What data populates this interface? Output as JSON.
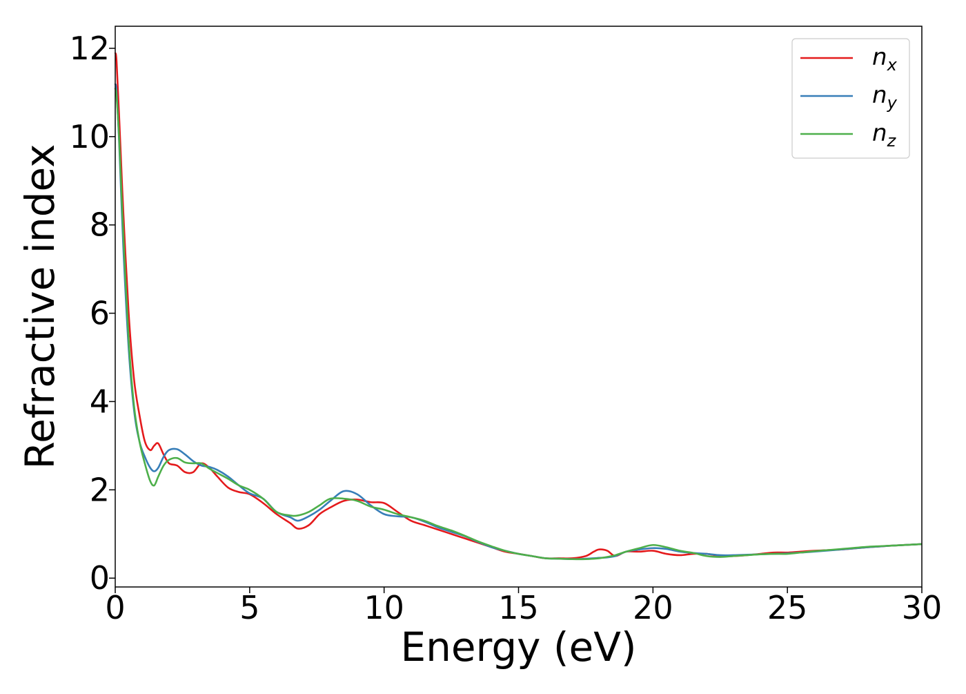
{
  "chart_data": {
    "type": "line",
    "title": "",
    "xlabel": "Energy (eV)",
    "ylabel": "Refractive index",
    "xlim": [
      0,
      30
    ],
    "ylim": [
      -0.2,
      12.5
    ],
    "xticks": [
      0,
      5,
      10,
      15,
      20,
      25,
      30
    ],
    "yticks": [
      0,
      2,
      4,
      6,
      8,
      10,
      12
    ],
    "grid": false,
    "legend_position": "top-right",
    "series": [
      {
        "name": "n_x",
        "label_main": "n",
        "label_sub": "x",
        "color": "#e41a1c",
        "x": [
          0,
          0.05,
          0.15,
          0.3,
          0.5,
          0.7,
          0.9,
          1.1,
          1.3,
          1.45,
          1.6,
          1.8,
          2.0,
          2.3,
          2.6,
          2.9,
          3.2,
          3.5,
          3.8,
          4.2,
          4.6,
          5.0,
          5.5,
          6.0,
          6.5,
          6.8,
          7.2,
          7.6,
          8.0,
          8.5,
          9.0,
          9.5,
          10.0,
          10.5,
          11.0,
          11.5,
          12.0,
          12.5,
          13.0,
          13.5,
          14.0,
          14.5,
          15.0,
          15.5,
          16.0,
          16.5,
          17.0,
          17.5,
          17.8,
          18.0,
          18.3,
          18.6,
          19.0,
          19.5,
          20.0,
          20.5,
          21.0,
          21.5,
          22.0,
          22.5,
          23.0,
          23.5,
          24.0,
          24.5,
          25.0,
          25.5,
          26.0,
          27.0,
          28.0,
          29.0,
          30.0
        ],
        "values": [
          11.9,
          11.7,
          10.4,
          8.3,
          6.0,
          4.5,
          3.7,
          3.1,
          2.9,
          3.0,
          3.05,
          2.8,
          2.6,
          2.55,
          2.4,
          2.4,
          2.6,
          2.5,
          2.3,
          2.05,
          1.95,
          1.9,
          1.7,
          1.45,
          1.25,
          1.12,
          1.2,
          1.45,
          1.6,
          1.75,
          1.78,
          1.72,
          1.7,
          1.5,
          1.3,
          1.2,
          1.1,
          1.0,
          0.9,
          0.8,
          0.7,
          0.6,
          0.55,
          0.5,
          0.45,
          0.45,
          0.45,
          0.5,
          0.6,
          0.65,
          0.62,
          0.5,
          0.6,
          0.6,
          0.62,
          0.55,
          0.52,
          0.55,
          0.55,
          0.5,
          0.5,
          0.52,
          0.55,
          0.58,
          0.58,
          0.6,
          0.62,
          0.65,
          0.7,
          0.74,
          0.77
        ]
      },
      {
        "name": "n_y",
        "label_main": "n",
        "label_sub": "y",
        "color": "#377eb8",
        "x": [
          0,
          0.05,
          0.15,
          0.3,
          0.5,
          0.7,
          0.9,
          1.1,
          1.3,
          1.45,
          1.6,
          1.8,
          2.0,
          2.3,
          2.6,
          2.9,
          3.2,
          3.5,
          3.8,
          4.2,
          4.6,
          5.0,
          5.5,
          6.0,
          6.5,
          6.8,
          7.2,
          7.6,
          8.0,
          8.5,
          9.0,
          9.5,
          10.0,
          10.5,
          11.0,
          11.5,
          12.0,
          12.5,
          13.0,
          13.5,
          14.0,
          14.5,
          15.0,
          15.5,
          16.0,
          16.5,
          17.0,
          17.5,
          17.8,
          18.0,
          18.3,
          18.6,
          19.0,
          19.5,
          20.0,
          20.5,
          21.0,
          21.5,
          22.0,
          22.5,
          23.0,
          23.5,
          24.0,
          24.5,
          25.0,
          25.5,
          26.0,
          27.0,
          28.0,
          29.0,
          30.0
        ],
        "values": [
          11.2,
          11.0,
          9.8,
          7.5,
          5.2,
          3.8,
          3.1,
          2.75,
          2.5,
          2.42,
          2.5,
          2.75,
          2.9,
          2.92,
          2.8,
          2.65,
          2.55,
          2.52,
          2.45,
          2.3,
          2.1,
          1.92,
          1.8,
          1.5,
          1.38,
          1.3,
          1.4,
          1.55,
          1.75,
          1.97,
          1.9,
          1.65,
          1.45,
          1.4,
          1.38,
          1.28,
          1.15,
          1.05,
          0.95,
          0.82,
          0.7,
          0.62,
          0.55,
          0.5,
          0.45,
          0.44,
          0.43,
          0.44,
          0.45,
          0.46,
          0.47,
          0.5,
          0.6,
          0.65,
          0.68,
          0.66,
          0.6,
          0.57,
          0.55,
          0.52,
          0.52,
          0.53,
          0.54,
          0.55,
          0.56,
          0.58,
          0.6,
          0.65,
          0.7,
          0.74,
          0.77
        ]
      },
      {
        "name": "n_z",
        "label_main": "n",
        "label_sub": "z",
        "color": "#4daf4a",
        "x": [
          0,
          0.05,
          0.15,
          0.3,
          0.5,
          0.7,
          0.9,
          1.1,
          1.3,
          1.45,
          1.6,
          1.8,
          2.0,
          2.3,
          2.6,
          2.9,
          3.2,
          3.5,
          3.8,
          4.2,
          4.6,
          5.0,
          5.5,
          6.0,
          6.5,
          6.8,
          7.2,
          7.6,
          8.0,
          8.5,
          9.0,
          9.5,
          10.0,
          10.5,
          11.0,
          11.5,
          12.0,
          12.5,
          13.0,
          13.5,
          14.0,
          14.5,
          15.0,
          15.5,
          16.0,
          16.5,
          17.0,
          17.5,
          17.8,
          18.0,
          18.3,
          18.6,
          19.0,
          19.5,
          20.0,
          20.5,
          21.0,
          21.5,
          22.0,
          22.5,
          23.0,
          23.5,
          24.0,
          24.5,
          25.0,
          25.5,
          26.0,
          27.0,
          28.0,
          29.0,
          30.0
        ],
        "values": [
          11.1,
          10.9,
          9.9,
          7.8,
          5.4,
          3.9,
          3.1,
          2.6,
          2.2,
          2.1,
          2.3,
          2.55,
          2.68,
          2.72,
          2.62,
          2.6,
          2.6,
          2.48,
          2.38,
          2.25,
          2.1,
          2.0,
          1.8,
          1.5,
          1.42,
          1.42,
          1.5,
          1.65,
          1.8,
          1.8,
          1.75,
          1.62,
          1.55,
          1.45,
          1.38,
          1.3,
          1.18,
          1.08,
          0.96,
          0.83,
          0.72,
          0.62,
          0.55,
          0.5,
          0.45,
          0.44,
          0.43,
          0.43,
          0.44,
          0.45,
          0.48,
          0.52,
          0.6,
          0.68,
          0.75,
          0.7,
          0.62,
          0.57,
          0.5,
          0.48,
          0.5,
          0.52,
          0.54,
          0.55,
          0.55,
          0.58,
          0.61,
          0.66,
          0.71,
          0.74,
          0.77
        ]
      }
    ]
  }
}
